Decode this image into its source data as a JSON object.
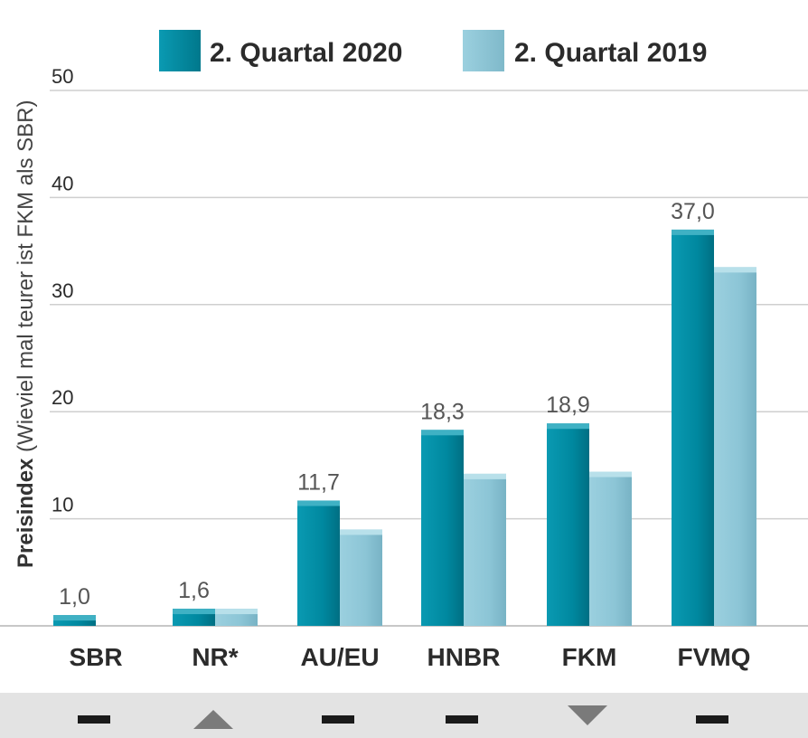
{
  "chart_data": {
    "type": "bar",
    "title": "",
    "xlabel": "",
    "ylabel_bold": "Preisindex",
    "ylabel_rest": "(Wieviel mal teurer ist FKM als SBR)",
    "ylim": [
      0,
      50
    ],
    "yticks": [
      10,
      20,
      30,
      40,
      50
    ],
    "grid": true,
    "legend_position": "top",
    "categories": [
      "SBR",
      "NR*",
      "AU/EU",
      "HNBR",
      "FKM",
      "FVMQ"
    ],
    "series": [
      {
        "name": "2. Quartal 2020",
        "color": "#00889f",
        "values": [
          1.0,
          1.6,
          11.7,
          18.3,
          18.9,
          37.0
        ],
        "labels": [
          "1,0",
          "1,6",
          "11,7",
          "18,3",
          "18,9",
          "37,0"
        ]
      },
      {
        "name": "2. Quartal 2019",
        "color": "#8cc5d6",
        "values": [
          null,
          1.6,
          9.0,
          14.2,
          14.4,
          33.5
        ],
        "labels": []
      }
    ],
    "trend_indicators": [
      "flat",
      "up",
      "flat",
      "flat",
      "down",
      "flat"
    ]
  }
}
